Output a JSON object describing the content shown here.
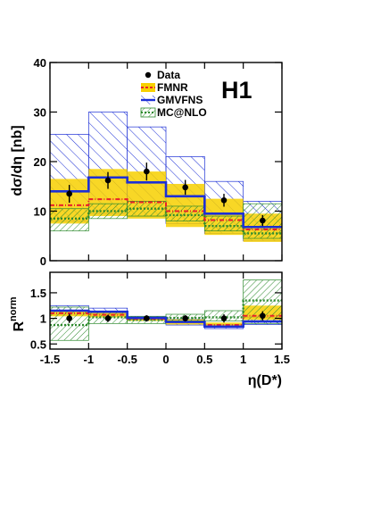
{
  "experiment_label": "H1",
  "legend": [
    {
      "key": "data",
      "label": "Data"
    },
    {
      "key": "fmnr",
      "label": "FMNR"
    },
    {
      "key": "gmvfns",
      "label": "GMVFNS"
    },
    {
      "key": "mcatnlo",
      "label": "MC@NLO"
    }
  ],
  "colors": {
    "data": "#000000",
    "fmnr_band": "#f7d000",
    "fmnr_line": "#e8212a",
    "gmvfns": "#1c2fd6",
    "mcatnlo": "#2d8a2d",
    "frame": "#000000"
  },
  "chart_data": [
    {
      "type": "histogram",
      "panel": "top",
      "ylabel": "dσ/dη [nb]",
      "xlim": [
        -1.5,
        1.5
      ],
      "ylim": [
        0,
        40
      ],
      "x_ticks": [
        -1.5,
        -1,
        -0.5,
        0,
        0.5,
        1,
        1.5
      ],
      "y_ticks": [
        0,
        10,
        20,
        30,
        40
      ],
      "y_tick_labels": [
        "0",
        "10",
        "20",
        "30",
        "40"
      ],
      "bin_edges": [
        -1.5,
        -1.0,
        -0.5,
        0.0,
        0.5,
        1.0,
        1.5
      ],
      "data": {
        "x": [
          -1.25,
          -0.75,
          -0.25,
          0.25,
          0.75,
          1.25
        ],
        "y": [
          13.5,
          16.2,
          18.0,
          14.8,
          12.2,
          8.1
        ],
        "err": [
          1.8,
          1.7,
          1.8,
          1.5,
          1.3,
          1.1
        ]
      },
      "fmnr": {
        "central": [
          11.2,
          12.4,
          11.8,
          10.0,
          8.2,
          6.3
        ],
        "low": [
          7.5,
          9.0,
          8.5,
          6.8,
          5.2,
          3.8
        ],
        "high": [
          16.5,
          18.5,
          18.0,
          15.5,
          12.5,
          9.5
        ]
      },
      "gmvfns": {
        "central": [
          14.0,
          16.8,
          15.8,
          13.0,
          9.5,
          6.8
        ],
        "low": [
          8.0,
          9.5,
          9.0,
          7.5,
          5.5,
          4.0
        ],
        "high": [
          25.5,
          30.0,
          27.0,
          21.0,
          16.0,
          12.0
        ]
      },
      "mcatnlo": {
        "central": [
          8.5,
          10.0,
          10.5,
          9.2,
          7.0,
          5.5
        ],
        "low": [
          6.0,
          8.5,
          9.0,
          8.0,
          6.0,
          4.5
        ],
        "high": [
          10.5,
          11.5,
          12.0,
          11.0,
          9.0,
          11.5
        ]
      }
    },
    {
      "type": "histogram",
      "panel": "bottom",
      "ylabel_base": "R",
      "ylabel_sup": "norm",
      "xlabel": "η(D*)",
      "xlim": [
        -1.5,
        1.5
      ],
      "ylim": [
        0.4,
        1.9
      ],
      "x_ticks": [
        -1.5,
        -1,
        -0.5,
        0,
        0.5,
        1,
        1.5
      ],
      "x_tick_labels": [
        "-1.5",
        "-1",
        "-0.5",
        "0",
        "0.5",
        "1",
        "1.5"
      ],
      "y_ticks": [
        0.5,
        1,
        1.5
      ],
      "y_tick_labels": [
        "0.5",
        "1",
        "1.5"
      ],
      "bin_edges": [
        -1.5,
        -1.0,
        -0.5,
        0.0,
        0.5,
        1.0,
        1.5
      ],
      "data": {
        "x": [
          -1.25,
          -0.75,
          -0.25,
          0.25,
          0.75,
          1.25
        ],
        "y": [
          1.0,
          1.0,
          1.0,
          1.0,
          1.0,
          1.05
        ],
        "err": [
          0.09,
          0.07,
          0.06,
          0.06,
          0.08,
          0.09
        ]
      },
      "fmnr": {
        "central": [
          1.1,
          1.07,
          0.99,
          0.93,
          0.87,
          1.05
        ],
        "low": [
          1.04,
          1.02,
          0.95,
          0.88,
          0.83,
          0.97
        ],
        "high": [
          1.16,
          1.12,
          1.02,
          0.98,
          0.92,
          1.25
        ]
      },
      "gmvfns": {
        "central": [
          1.15,
          1.13,
          1.01,
          0.93,
          0.84,
          0.94
        ],
        "low": [
          1.08,
          1.08,
          0.98,
          0.87,
          0.8,
          0.88
        ],
        "high": [
          1.25,
          1.2,
          1.04,
          0.98,
          0.88,
          1.02
        ]
      },
      "mcatnlo": {
        "central": [
          0.87,
          1.02,
          0.97,
          1.01,
          1.02,
          1.35
        ],
        "low": [
          0.57,
          0.9,
          0.9,
          0.95,
          0.95,
          0.9
        ],
        "high": [
          1.22,
          1.12,
          1.04,
          1.08,
          1.15,
          1.75
        ]
      }
    }
  ]
}
